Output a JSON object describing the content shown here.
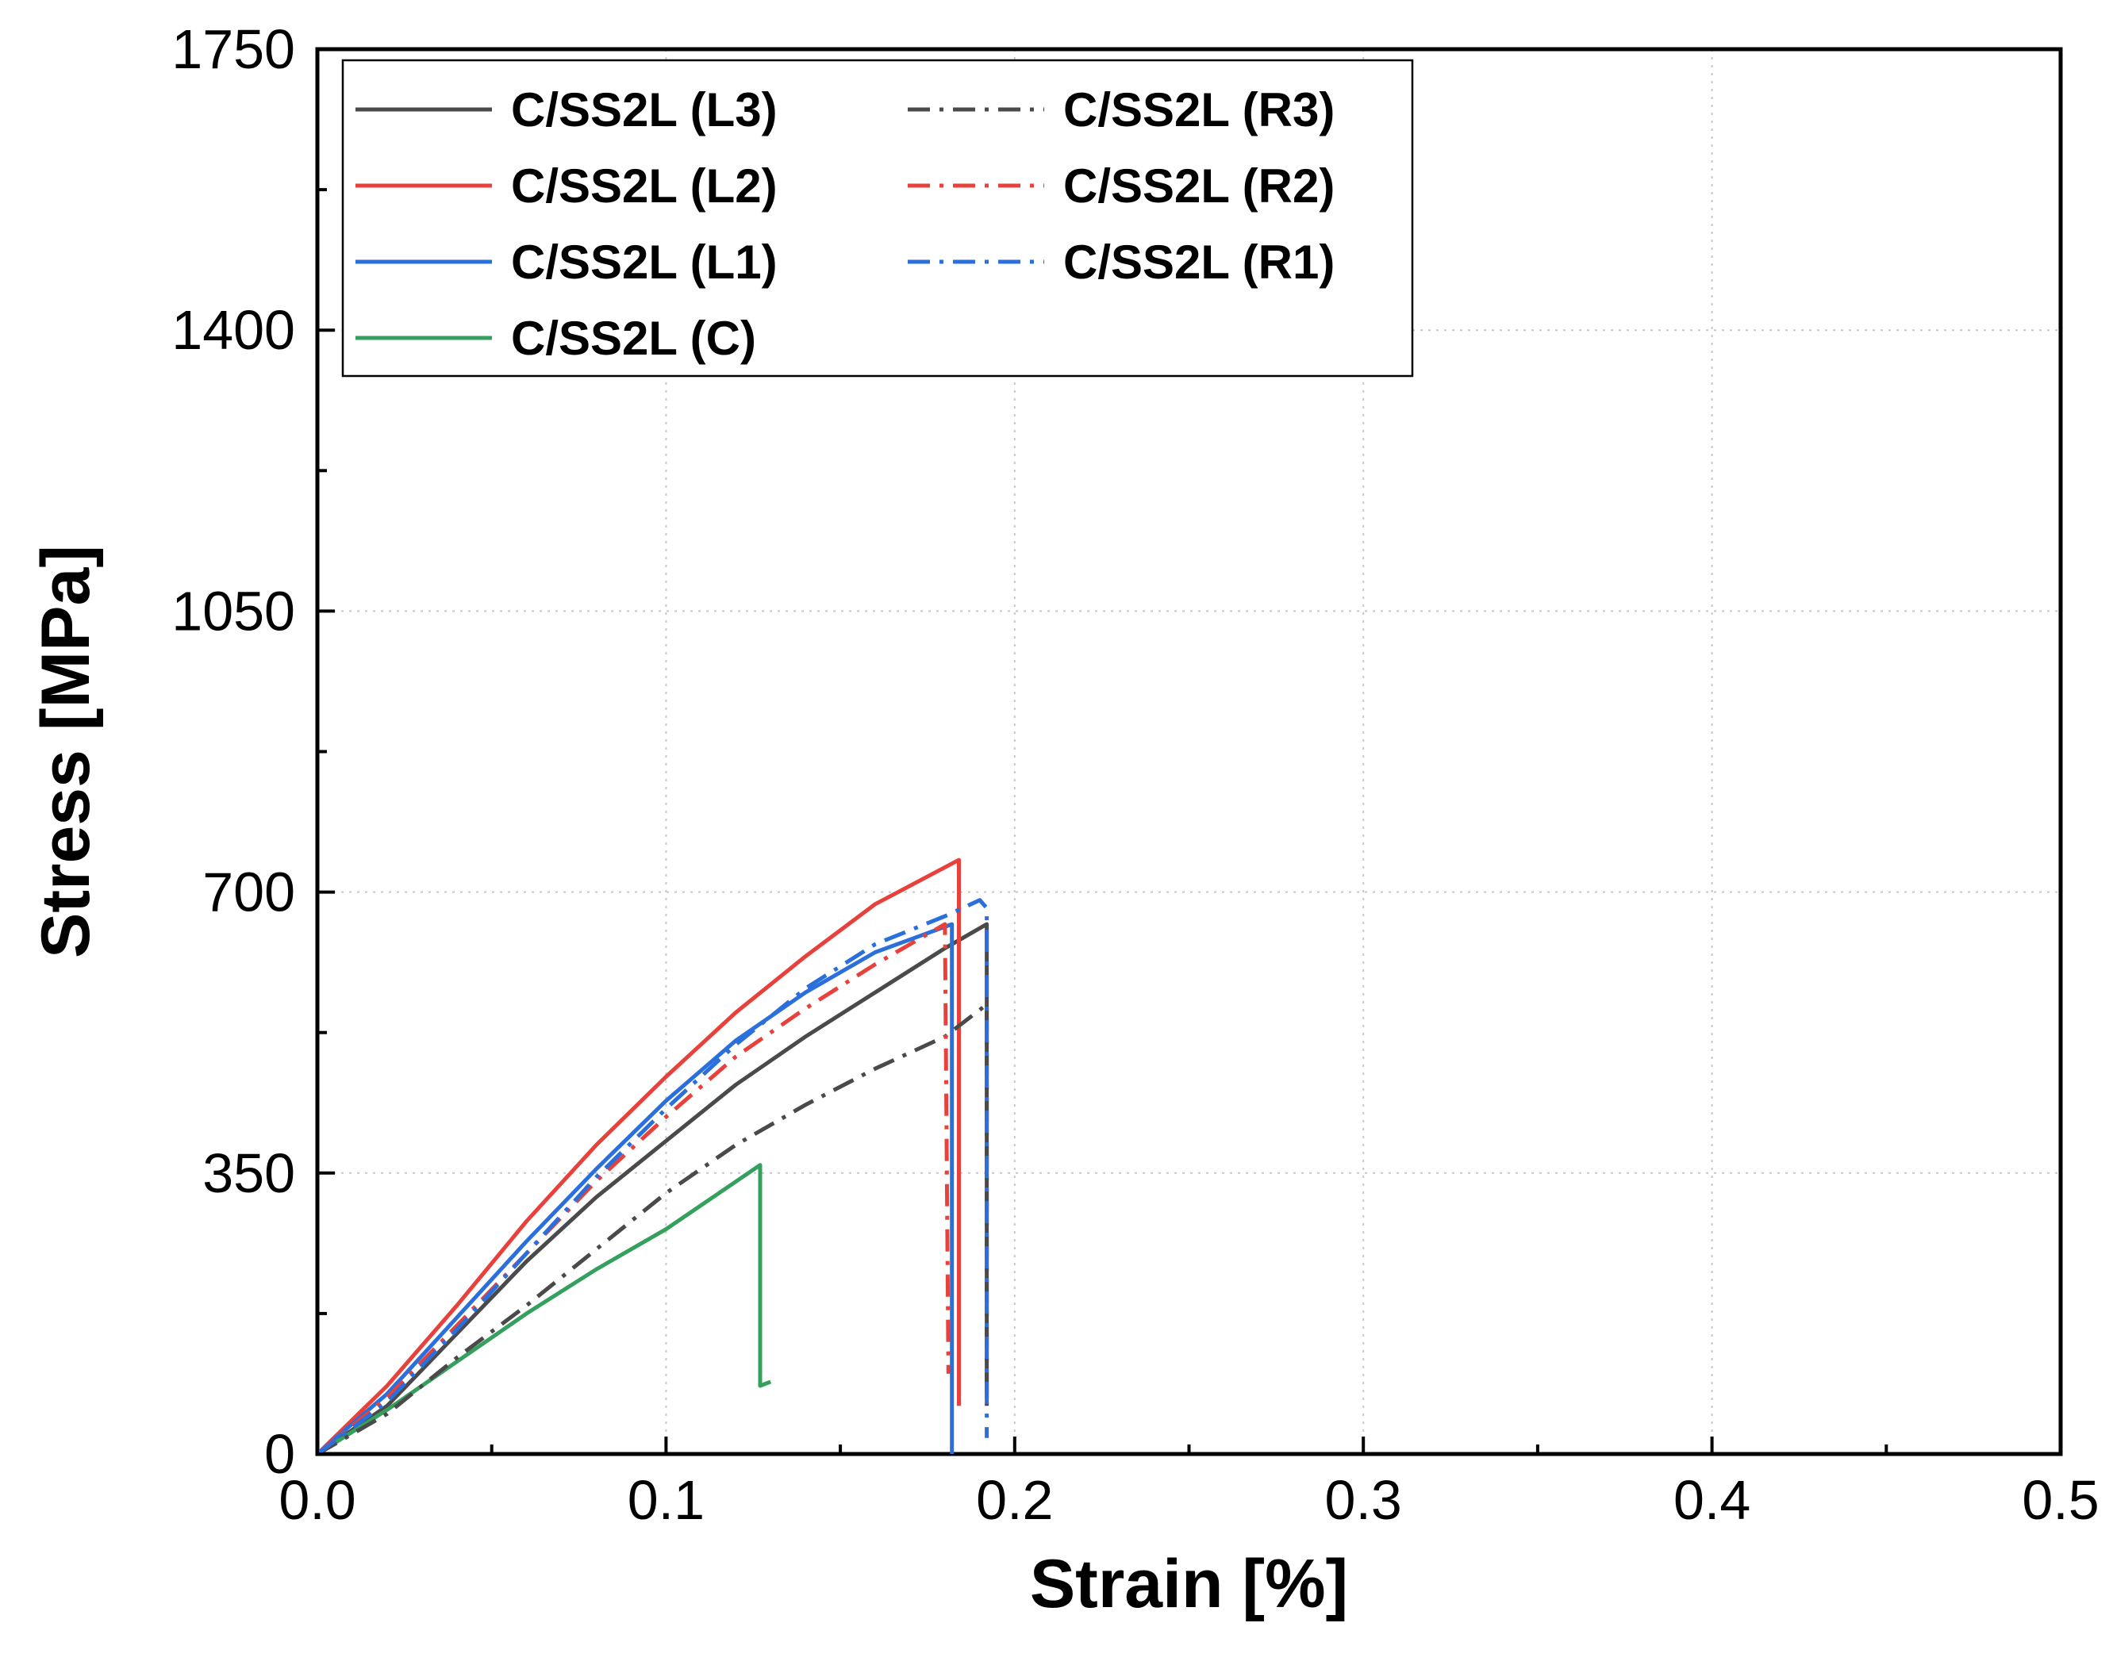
{
  "chart_data": {
    "type": "line",
    "title": "",
    "xlabel": "Strain [%]",
    "ylabel": "Stress [MPa]",
    "xlim": [
      0,
      0.5
    ],
    "ylim": [
      0,
      1750
    ],
    "xticks": [
      0.0,
      0.1,
      0.2,
      0.3,
      0.4,
      0.5
    ],
    "xtick_labels": [
      "0.0",
      "0.1",
      "0.2",
      "0.3",
      "0.4",
      "0.5"
    ],
    "yticks": [
      0,
      350,
      700,
      1050,
      1400,
      1750
    ],
    "ytick_labels": [
      "0",
      "350",
      "700",
      "1050",
      "1400",
      "1750"
    ],
    "grid": true,
    "legend_position": "top-left",
    "series": [
      {
        "name": "C/SS2L (L3)",
        "color": "#4a4a4a",
        "dash": "solid",
        "points": [
          [
            0,
            0
          ],
          [
            0.02,
            60
          ],
          [
            0.04,
            150
          ],
          [
            0.06,
            240
          ],
          [
            0.08,
            320
          ],
          [
            0.1,
            390
          ],
          [
            0.12,
            460
          ],
          [
            0.14,
            520
          ],
          [
            0.16,
            575
          ],
          [
            0.18,
            630
          ],
          [
            0.192,
            660
          ],
          [
            0.192,
            70
          ]
        ]
      },
      {
        "name": "C/SS2L (L2)",
        "color": "#e8413c",
        "dash": "solid",
        "points": [
          [
            0,
            0
          ],
          [
            0.02,
            85
          ],
          [
            0.04,
            185
          ],
          [
            0.06,
            290
          ],
          [
            0.08,
            385
          ],
          [
            0.1,
            470
          ],
          [
            0.12,
            550
          ],
          [
            0.14,
            620
          ],
          [
            0.16,
            685
          ],
          [
            0.184,
            740
          ],
          [
            0.184,
            60
          ]
        ]
      },
      {
        "name": "C/SS2L (L1)",
        "color": "#2a6fdb",
        "dash": "solid",
        "points": [
          [
            0,
            0
          ],
          [
            0.02,
            75
          ],
          [
            0.04,
            170
          ],
          [
            0.06,
            265
          ],
          [
            0.08,
            355
          ],
          [
            0.1,
            440
          ],
          [
            0.12,
            515
          ],
          [
            0.14,
            575
          ],
          [
            0.16,
            625
          ],
          [
            0.182,
            660
          ],
          [
            0.182,
            0
          ]
        ]
      },
      {
        "name": "C/SS2L (C)",
        "color": "#35a05e",
        "dash": "solid",
        "points": [
          [
            0,
            0
          ],
          [
            0.02,
            55
          ],
          [
            0.04,
            115
          ],
          [
            0.06,
            175
          ],
          [
            0.08,
            230
          ],
          [
            0.1,
            280
          ],
          [
            0.127,
            360
          ],
          [
            0.127,
            85
          ],
          [
            0.13,
            90
          ]
        ]
      },
      {
        "name": "C/SS2L (R3)",
        "color": "#4a4a4a",
        "dash": "dashdot",
        "points": [
          [
            0,
            0
          ],
          [
            0.02,
            50
          ],
          [
            0.04,
            120
          ],
          [
            0.06,
            185
          ],
          [
            0.08,
            255
          ],
          [
            0.1,
            325
          ],
          [
            0.12,
            385
          ],
          [
            0.14,
            435
          ],
          [
            0.16,
            480
          ],
          [
            0.18,
            520
          ],
          [
            0.192,
            560
          ],
          [
            0.192,
            60
          ]
        ]
      },
      {
        "name": "C/SS2L (R2)",
        "color": "#e8413c",
        "dash": "dashdot",
        "points": [
          [
            0,
            0
          ],
          [
            0.02,
            70
          ],
          [
            0.04,
            160
          ],
          [
            0.06,
            250
          ],
          [
            0.08,
            340
          ],
          [
            0.1,
            420
          ],
          [
            0.12,
            495
          ],
          [
            0.14,
            555
          ],
          [
            0.16,
            610
          ],
          [
            0.18,
            660
          ],
          [
            0.181,
            100
          ]
        ]
      },
      {
        "name": "C/SS2L (R1)",
        "color": "#2a6fdb",
        "dash": "dashdot",
        "points": [
          [
            0,
            0
          ],
          [
            0.02,
            65
          ],
          [
            0.04,
            155
          ],
          [
            0.06,
            250
          ],
          [
            0.08,
            345
          ],
          [
            0.1,
            430
          ],
          [
            0.12,
            510
          ],
          [
            0.14,
            580
          ],
          [
            0.16,
            635
          ],
          [
            0.18,
            670
          ],
          [
            0.19,
            690
          ],
          [
            0.192,
            680
          ],
          [
            0.192,
            20
          ]
        ]
      }
    ]
  }
}
